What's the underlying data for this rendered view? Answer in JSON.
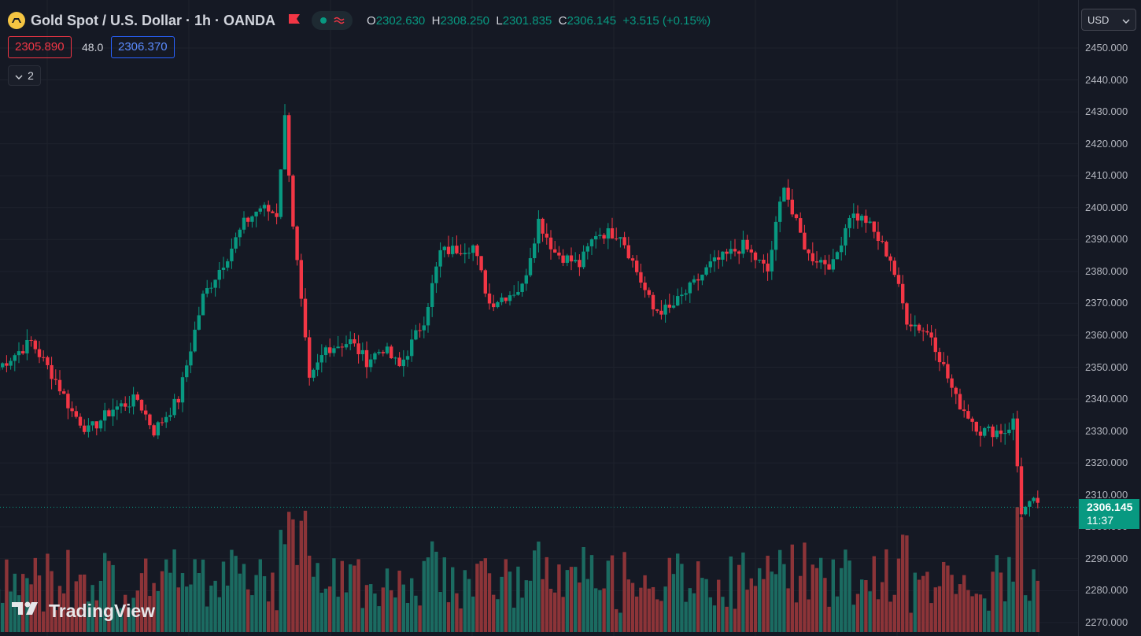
{
  "header": {
    "symbol_title": "Gold Spot / U.S. Dollar · 1h · OANDA",
    "ohlc": {
      "o_label": "O",
      "o_value": "2302.630",
      "h_label": "H",
      "h_value": "2308.250",
      "l_label": "L",
      "l_value": "2301.835",
      "c_label": "C",
      "c_value": "2306.145",
      "change": "+3.515 (+0.15%)"
    },
    "icons": [
      "gold-logo-icon",
      "flag-icon",
      "live-dot-icon",
      "wave-icon"
    ]
  },
  "order": {
    "bid": "2305.890",
    "spread": "48.0",
    "ask": "2306.370"
  },
  "indicators": {
    "collapse_count": "2"
  },
  "price_axis": {
    "currency": "USD",
    "ticks": [
      "2450.000",
      "2440.000",
      "2430.000",
      "2420.000",
      "2410.000",
      "2400.000",
      "2390.000",
      "2380.000",
      "2370.000",
      "2360.000",
      "2350.000",
      "2340.000",
      "2330.000",
      "2320.000",
      "2310.000",
      "2300.000",
      "2290.000",
      "2280.000",
      "2270.000"
    ],
    "last_price": "2306.145",
    "countdown": "11:37"
  },
  "brand": "TradingView",
  "colors": {
    "up": "#089981",
    "down": "#f23645",
    "background": "#151924",
    "grid": "#1e222d"
  },
  "chart_data": {
    "type": "candlestick",
    "ylim": [
      2268,
      2455
    ],
    "waypoints": [
      [
        0,
        2350
      ],
      [
        8,
        2358
      ],
      [
        14,
        2346
      ],
      [
        18,
        2336
      ],
      [
        22,
        2330
      ],
      [
        28,
        2337
      ],
      [
        34,
        2340
      ],
      [
        38,
        2330
      ],
      [
        44,
        2340
      ],
      [
        50,
        2372
      ],
      [
        56,
        2385
      ],
      [
        60,
        2395
      ],
      [
        64,
        2400
      ],
      [
        68,
        2398
      ],
      [
        70,
        2428
      ],
      [
        72,
        2395
      ],
      [
        76,
        2345
      ],
      [
        80,
        2356
      ],
      [
        86,
        2358
      ],
      [
        90,
        2352
      ],
      [
        94,
        2356
      ],
      [
        98,
        2350
      ],
      [
        104,
        2365
      ],
      [
        108,
        2386
      ],
      [
        116,
        2388
      ],
      [
        120,
        2370
      ],
      [
        128,
        2375
      ],
      [
        132,
        2396
      ],
      [
        136,
        2386
      ],
      [
        142,
        2382
      ],
      [
        146,
        2392
      ],
      [
        152,
        2392
      ],
      [
        156,
        2380
      ],
      [
        160,
        2368
      ],
      [
        164,
        2368
      ],
      [
        170,
        2376
      ],
      [
        174,
        2382
      ],
      [
        182,
        2388
      ],
      [
        188,
        2380
      ],
      [
        192,
        2408
      ],
      [
        194,
        2398
      ],
      [
        198,
        2385
      ],
      [
        204,
        2382
      ],
      [
        208,
        2398
      ],
      [
        212,
        2396
      ],
      [
        218,
        2384
      ],
      [
        222,
        2365
      ],
      [
        228,
        2360
      ],
      [
        234,
        2340
      ],
      [
        240,
        2330
      ],
      [
        246,
        2330
      ],
      [
        248,
        2333
      ],
      [
        250,
        2305
      ],
      [
        254,
        2308
      ]
    ],
    "count": 255
  }
}
